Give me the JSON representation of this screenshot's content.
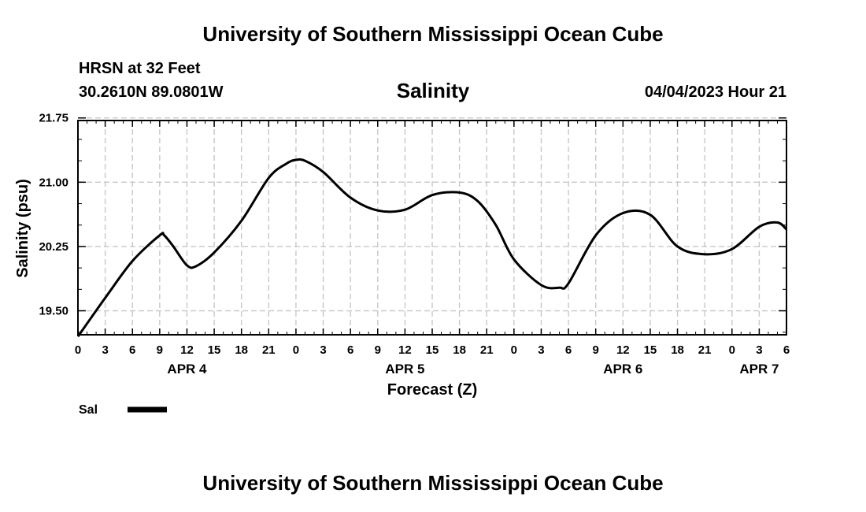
{
  "header": {
    "title": "University of Southern Mississippi Ocean Cube",
    "station": "HRSN at 32 Feet",
    "coords": "30.2610N  89.0801W",
    "datetime": "04/04/2023 Hour 21"
  },
  "footer": {
    "title": "University of Southern Mississippi Ocean Cube"
  },
  "chart_data": {
    "type": "line",
    "title": "Salinity",
    "xlabel": "Forecast (Z)",
    "ylabel": "Salinity (psu)",
    "ylim": [
      19.22,
      21.72
    ],
    "xlim": [
      0,
      78
    ],
    "grid": true,
    "y_ticks": [
      "21.75",
      "21.00",
      "20.25",
      "19.50"
    ],
    "x_tick_labels": [
      "0",
      "3",
      "6",
      "9",
      "12",
      "15",
      "18",
      "21",
      "0",
      "3",
      "6",
      "9",
      "12",
      "15",
      "18",
      "21",
      "0",
      "3",
      "6",
      "9",
      "12",
      "15",
      "18",
      "21",
      "0",
      "3",
      "6"
    ],
    "date_labels": [
      {
        "label": "APR 4",
        "hour": 12
      },
      {
        "label": "APR 5",
        "hour": 36
      },
      {
        "label": "APR 6",
        "hour": 60
      },
      {
        "label": "APR 7",
        "hour": 75
      }
    ],
    "legend": {
      "position": "bottom-left",
      "label": "Sal"
    },
    "series": [
      {
        "name": "Sal",
        "color": "#000000",
        "x": [
          0,
          3,
          6,
          9,
          9.5,
          10.5,
          12,
          13,
          15,
          18,
          21,
          23,
          24,
          25,
          27,
          30,
          33,
          36,
          39,
          42,
          44,
          46,
          48,
          51,
          53,
          54,
          57,
          60,
          63,
          66,
          69,
          72,
          75,
          77,
          78
        ],
        "values": [
          19.2,
          19.65,
          20.08,
          20.38,
          20.38,
          20.25,
          20.03,
          20.02,
          20.18,
          20.55,
          21.05,
          21.22,
          21.26,
          21.25,
          21.12,
          20.82,
          20.67,
          20.68,
          20.85,
          20.88,
          20.78,
          20.5,
          20.1,
          19.8,
          19.77,
          19.82,
          20.38,
          20.64,
          20.62,
          20.25,
          20.16,
          20.22,
          20.48,
          20.53,
          20.45
        ]
      }
    ]
  }
}
